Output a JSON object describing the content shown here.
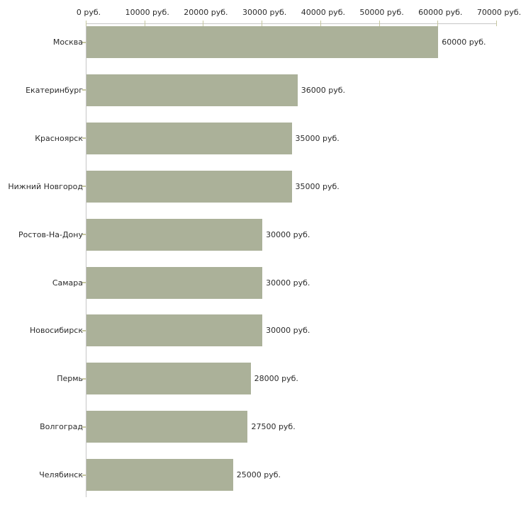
{
  "chart_data": {
    "type": "bar",
    "orientation": "horizontal",
    "title": "",
    "xlabel": "",
    "ylabel": "",
    "categories": [
      "Москва",
      "Екатеринбург",
      "Красноярск",
      "Нижний Новгород",
      "Ростов-На-Дону",
      "Самара",
      "Новосибирск",
      "Пермь",
      "Волгоград",
      "Челябинск"
    ],
    "values": [
      60000,
      36000,
      35000,
      35000,
      30000,
      30000,
      30000,
      28000,
      27500,
      25000
    ],
    "value_labels": [
      "60000 руб.",
      "36000 руб.",
      "35000 руб.",
      "35000 руб.",
      "30000 руб.",
      "30000 руб.",
      "30000 руб.",
      "28000 руб.",
      "27500 руб.",
      "25000 руб."
    ],
    "x_ticks": [
      0,
      10000,
      20000,
      30000,
      40000,
      50000,
      60000,
      70000
    ],
    "x_tick_labels": [
      "0 руб.",
      "10000 руб.",
      "20000 руб.",
      "30000 руб.",
      "40000 руб.",
      "50000 руб.",
      "60000 руб.",
      "70000 руб."
    ],
    "xlim": [
      0,
      70000
    ],
    "axis_position": "top",
    "grid": false,
    "legend": null,
    "colors": {
      "bar_fill": "#abb199",
      "axis_line": "#c6c6c6",
      "tick_mark": "#c6c79f",
      "text": "#2b2b2b",
      "background": "#ffffff"
    }
  }
}
